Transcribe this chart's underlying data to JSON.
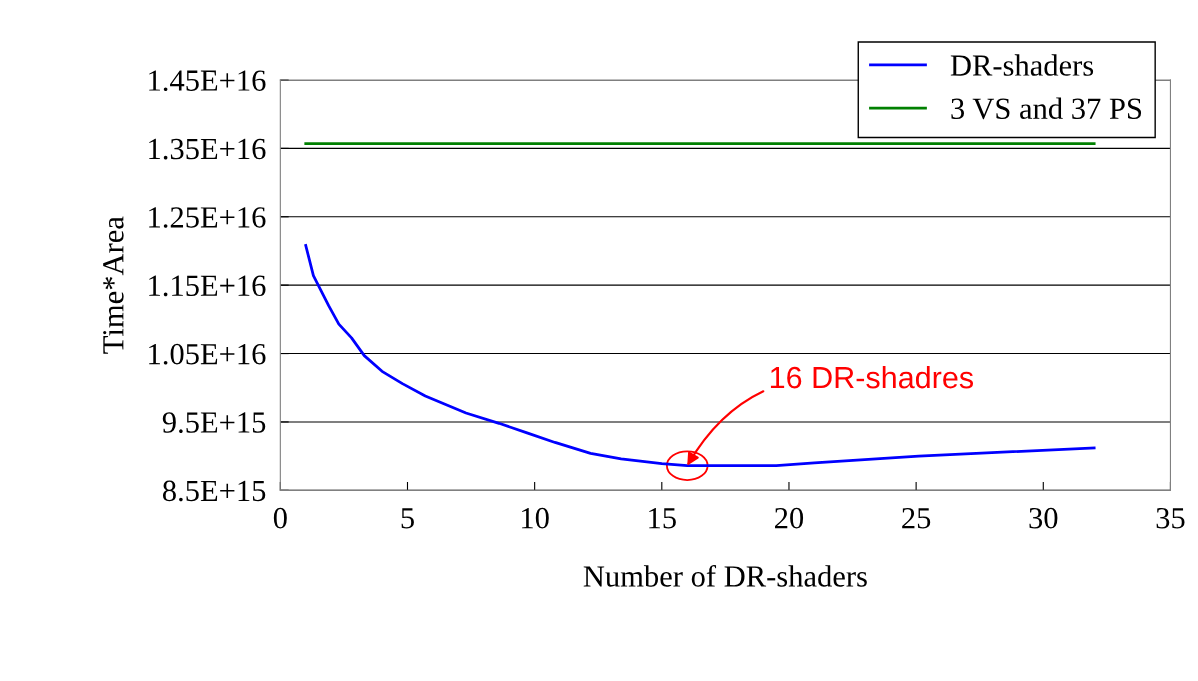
{
  "chart_data": {
    "type": "line",
    "xlabel": "Number of DR-shaders",
    "ylabel": "Time*Area",
    "xlim": [
      0,
      35
    ],
    "xticks": [
      0,
      5,
      10,
      15,
      20,
      25,
      30,
      35
    ],
    "ylim": [
      8500000000000000.0,
      1.45e+16
    ],
    "yticks": [
      {
        "value": 8500000000000000.0,
        "label": "8.5E+15"
      },
      {
        "value": 9500000000000000.0,
        "label": "9.5E+15"
      },
      {
        "value": 1.05e+16,
        "label": "1.05E+16"
      },
      {
        "value": 1.15e+16,
        "label": "1.15E+16"
      },
      {
        "value": 1.25e+16,
        "label": "1.25E+16"
      },
      {
        "value": 1.35e+16,
        "label": "1.35E+16"
      },
      {
        "value": 1.45e+16,
        "label": "1.45E+16"
      }
    ],
    "grid": "y",
    "legend": "top right",
    "marker": "none",
    "line_style": "solid",
    "series": [
      {
        "name": "DR-shaders",
        "color": "#0000ff",
        "x": [
          1,
          1.3,
          1.9,
          2.3,
          2.8,
          3.3,
          4,
          4.8,
          5.7,
          7.3,
          8.6,
          9.7,
          10.8,
          12.2,
          13.4,
          15,
          16,
          19.5,
          21,
          25.1,
          32
        ],
        "values": [
          1.208e+16,
          1.164e+16,
          1.12e+16,
          1.093e+16,
          1.073e+16,
          1.047e+16,
          1.024e+16,
          1.006e+16,
          9880000000000000.0,
          9630000000000000.0,
          9480000000000000.0,
          9340000000000000.0,
          9200000000000000.0,
          9040000000000000.0,
          8960000000000000.0,
          8890000000000000.0,
          8860000000000000.0,
          8860000000000000.0,
          8900000000000000.0,
          9000000000000000.0,
          9120000000000000.0
        ]
      },
      {
        "name": "3 VS and 37 PS",
        "color": "#008000",
        "x": [
          1,
          32
        ],
        "values": [
          1.357e+16,
          1.357e+16
        ]
      }
    ],
    "annotations": [
      {
        "text": "16 DR-shadres",
        "x": 16,
        "y": 8860000000000000.0
      }
    ]
  }
}
